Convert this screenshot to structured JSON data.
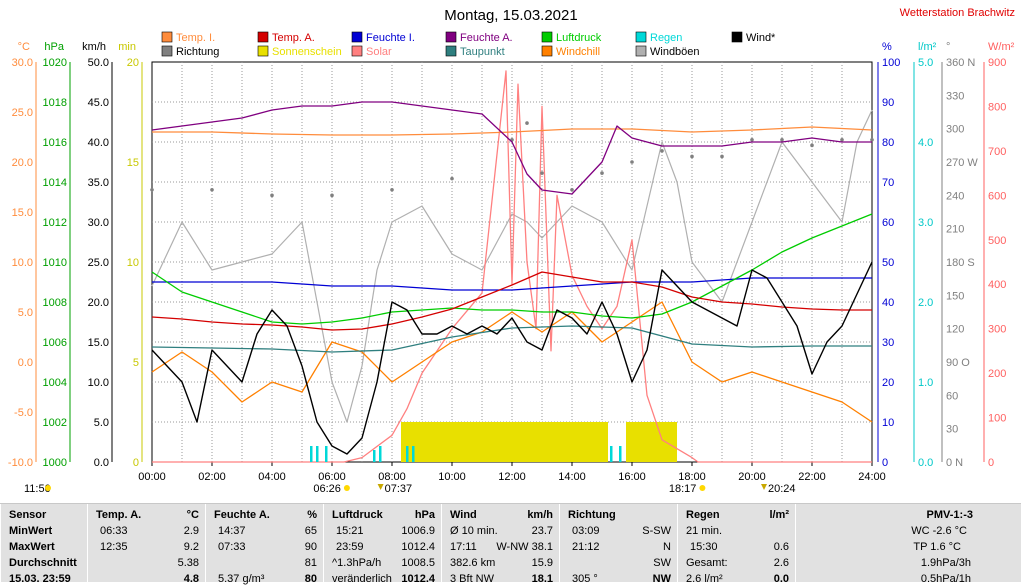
{
  "title": "Montag, 15.03.2021",
  "station": "Wetterstation Brachwitz",
  "legend": [
    {
      "label": "Temp. I.",
      "color": "#ff8c3c"
    },
    {
      "label": "Richtung",
      "color": "#808080"
    },
    {
      "label": "Temp. A.",
      "color": "#d40000"
    },
    {
      "label": "Sonnenschein",
      "color": "#e8e000"
    },
    {
      "label": "Feuchte I.",
      "color": "#0000d4"
    },
    {
      "label": "Solar",
      "color": "#ff8080"
    },
    {
      "label": "Feuchte A.",
      "color": "#800080"
    },
    {
      "label": "Taupunkt",
      "color": "#2f7f7f"
    },
    {
      "label": "Luftdruck",
      "color": "#00cc00"
    },
    {
      "label": "Windchill",
      "color": "#ff8000"
    },
    {
      "label": "Regen",
      "color": "#00d8d8"
    },
    {
      "label": "Windböen",
      "color": "#b0b0b0"
    },
    {
      "label": "Wind*",
      "color": "#000000"
    }
  ],
  "axes_left": [
    {
      "unit": "°C",
      "color": "#ff8c3c",
      "ticks": [
        "30.0",
        "25.0",
        "20.0",
        "15.0",
        "10.0",
        "5.0",
        "0.0",
        "-5.0",
        "-10.0"
      ]
    },
    {
      "unit": "hPa",
      "color": "#00a000",
      "ticks": [
        "1020",
        "1018",
        "1016",
        "1014",
        "1012",
        "1010",
        "1008",
        "1006",
        "1004",
        "1002",
        "1000"
      ]
    },
    {
      "unit": "km/h",
      "color": "#000000",
      "ticks": [
        "50.0",
        "45.0",
        "40.0",
        "35.0",
        "30.0",
        "25.0",
        "20.0",
        "15.0",
        "10.0",
        "5.0",
        "0.0"
      ]
    },
    {
      "unit": "min",
      "color": "#c8c800",
      "ticks": [
        "20",
        "15",
        "10",
        "5",
        "0"
      ]
    }
  ],
  "axes_right": [
    {
      "unit": "%",
      "color": "#0000d4",
      "ticks": [
        "100",
        "90",
        "80",
        "70",
        "60",
        "50",
        "40",
        "30",
        "20",
        "10",
        "0"
      ]
    },
    {
      "unit": "l/m²",
      "color": "#00c8c8",
      "ticks": [
        "5.0",
        "4.0",
        "3.0",
        "2.0",
        "1.0",
        "0.0"
      ]
    },
    {
      "unit": "°",
      "color": "#808080",
      "ticks": [
        "360 N",
        "330",
        "300",
        "270 W",
        "240",
        "210",
        "180 S",
        "150",
        "120",
        "90 O",
        "60",
        "30",
        "0 N"
      ]
    },
    {
      "unit": "W/m²",
      "color": "#ff6060",
      "ticks": [
        "900",
        "800",
        "700",
        "600",
        "500",
        "400",
        "300",
        "200",
        "100",
        "0"
      ]
    }
  ],
  "x_ticks": [
    "00:00",
    "02:00",
    "04:00",
    "06:00",
    "08:00",
    "10:00",
    "12:00",
    "14:00",
    "16:00",
    "18:00",
    "20:00",
    "22:00",
    "24:00"
  ],
  "sun_events": {
    "sunrise": "06:26",
    "sunset": "18:17",
    "daylength": "11:50",
    "moonrise": "07:37",
    "moonset": "20:24"
  },
  "chart_data": {
    "type": "line",
    "title": "Montag, 15.03.2021",
    "x_unit": "hour",
    "xlim": [
      0,
      24
    ],
    "series": [
      {
        "name": "Luftdruck",
        "unit": "hPa",
        "color": "#00cc00",
        "ylim": [
          1000,
          1020
        ],
        "x": [
          0,
          1,
          2,
          3,
          4,
          5,
          6,
          7,
          8,
          9,
          10,
          11,
          12,
          13,
          14,
          15,
          16,
          17,
          18,
          19,
          20,
          21,
          22,
          23,
          24
        ],
        "y": [
          1009.5,
          1008.5,
          1008.0,
          1007.5,
          1007.0,
          1006.9,
          1007.0,
          1007.2,
          1007.5,
          1007.6,
          1007.7,
          1007.6,
          1007.6,
          1007.5,
          1007.5,
          1007.3,
          1007.2,
          1007.4,
          1008.0,
          1008.8,
          1009.6,
          1010.5,
          1011.2,
          1011.8,
          1012.4
        ]
      },
      {
        "name": "Temp. A.",
        "unit": "°C",
        "color": "#d40000",
        "ylim": [
          -10,
          30
        ],
        "x": [
          0,
          1,
          2,
          3,
          4,
          5,
          6,
          7,
          8,
          9,
          10,
          11,
          12,
          13,
          14,
          15,
          16,
          17,
          18,
          19,
          20,
          21,
          22,
          23,
          24
        ],
        "y": [
          4.5,
          4.3,
          4.0,
          3.8,
          3.7,
          3.5,
          3.2,
          3.3,
          3.8,
          4.5,
          5.3,
          6.5,
          7.7,
          9.0,
          8.5,
          8.0,
          8.0,
          7.5,
          6.5,
          6.0,
          5.8,
          5.5,
          5.3,
          5.2,
          5.2
        ]
      },
      {
        "name": "Temp. I.",
        "unit": "°C",
        "color": "#ff8c3c",
        "ylim": [
          -10,
          30
        ],
        "x": [
          0,
          2,
          4,
          6,
          8,
          10,
          12,
          14,
          16,
          18,
          20,
          22,
          24
        ],
        "y": [
          23.0,
          23.0,
          22.8,
          22.7,
          22.7,
          22.8,
          23.0,
          23.3,
          23.3,
          23.0,
          23.2,
          23.5,
          23.2
        ]
      },
      {
        "name": "Taupunkt",
        "unit": "°C",
        "color": "#2f7f7f",
        "ylim": [
          -10,
          30
        ],
        "x": [
          0,
          2,
          4,
          6,
          8,
          10,
          12,
          14,
          16,
          18,
          20,
          22,
          24
        ],
        "y": [
          1.5,
          1.4,
          1.3,
          1.0,
          1.2,
          2.5,
          3.4,
          3.6,
          3.4,
          1.8,
          1.5,
          1.6,
          1.6
        ]
      },
      {
        "name": "Feuchte I.",
        "unit": "%",
        "color": "#0000d4",
        "ylim": [
          0,
          100
        ],
        "x": [
          0,
          4,
          6,
          8,
          10,
          12,
          14,
          16,
          18,
          20,
          22,
          24
        ],
        "y": [
          45,
          45,
          44,
          44,
          43,
          43,
          44,
          45,
          45,
          46,
          46,
          46
        ]
      },
      {
        "name": "Feuchte A.",
        "unit": "%",
        "color": "#800080",
        "ylim": [
          0,
          100
        ],
        "x": [
          0,
          1,
          2,
          3,
          4,
          5,
          6,
          7,
          8,
          9,
          10,
          11,
          12,
          12.5,
          13,
          14,
          15,
          15.5,
          16,
          17,
          18,
          19,
          20,
          21,
          22,
          23,
          24
        ],
        "y": [
          83,
          84,
          85,
          86,
          88,
          89,
          89,
          90,
          90,
          89,
          88,
          87,
          80,
          72,
          68,
          67,
          75,
          84,
          81,
          79,
          79,
          79,
          80,
          80,
          81,
          80,
          80
        ]
      },
      {
        "name": "Wind*",
        "unit": "km/h",
        "color": "#000000",
        "ylim": [
          0,
          50
        ],
        "x": [
          0,
          0.5,
          1,
          1.5,
          2,
          2.5,
          3,
          3.5,
          4,
          4.5,
          5,
          5.5,
          6,
          6.5,
          7,
          7.5,
          8,
          8.5,
          9,
          9.5,
          10,
          10.5,
          11,
          11.5,
          12,
          12.5,
          13,
          13.5,
          14,
          14.5,
          15,
          15.5,
          16,
          16.5,
          17,
          17.5,
          18,
          18.5,
          19,
          19.5,
          20,
          20.5,
          21,
          21.5,
          22,
          22.5,
          23,
          23.5,
          24
        ],
        "y": [
          14,
          12,
          10,
          5,
          14,
          12,
          10,
          16,
          19,
          17,
          12,
          5,
          2,
          1,
          3,
          10,
          20,
          19,
          16,
          16,
          17,
          16,
          17,
          16,
          18,
          15,
          14,
          19,
          18,
          16,
          20,
          16,
          10,
          14,
          24,
          22,
          20,
          19,
          18,
          17,
          24,
          23,
          20,
          17,
          11,
          15,
          17,
          21,
          25
        ]
      },
      {
        "name": "Windböen",
        "unit": "km/h",
        "color": "#b0b0b0",
        "ylim": [
          0,
          50
        ],
        "x": [
          0,
          1,
          2,
          3,
          4,
          5,
          6,
          6.5,
          7,
          7.5,
          8,
          9,
          10,
          11,
          12,
          12.5,
          13,
          14,
          15,
          16,
          17,
          17.5,
          18,
          19,
          20,
          21,
          22,
          23,
          23.5,
          24
        ],
        "y": [
          22,
          30,
          24,
          25,
          26,
          30,
          10,
          5,
          12,
          24,
          30,
          32,
          26,
          24,
          31,
          30,
          28,
          32,
          30,
          24,
          40,
          35,
          25,
          20,
          30,
          40,
          35,
          30,
          40,
          44
        ]
      },
      {
        "name": "Windchill",
        "unit": "°C",
        "color": "#ff8000",
        "ylim": [
          -10,
          30
        ],
        "x": [
          0,
          1,
          2,
          3,
          4,
          5,
          6,
          7,
          8,
          9,
          10,
          11,
          12,
          13,
          14,
          15,
          16,
          17,
          18,
          19,
          20,
          21,
          22,
          23,
          24
        ],
        "y": [
          -1,
          1,
          -1,
          -4,
          -2,
          -3,
          2,
          1,
          -2,
          0,
          2,
          3,
          5,
          3,
          5,
          2,
          4,
          6,
          0,
          -2,
          -1,
          -2,
          -3,
          -4,
          -6
        ]
      },
      {
        "name": "Solar",
        "unit": "W/m²",
        "color": "#ff8080",
        "ylim": [
          0,
          900
        ],
        "x": [
          0,
          6.4,
          7,
          8,
          8.5,
          9,
          10,
          11,
          11.8,
          12,
          12.2,
          12.5,
          12.8,
          13,
          13.3,
          13.5,
          14,
          14.5,
          15,
          15.5,
          16,
          16.5,
          17,
          18,
          18.2,
          24
        ],
        "y": [
          0,
          0,
          10,
          60,
          120,
          200,
          300,
          380,
          880,
          400,
          850,
          450,
          300,
          800,
          250,
          600,
          420,
          350,
          300,
          350,
          500,
          150,
          50,
          10,
          0,
          0
        ]
      },
      {
        "name": "Richtung",
        "unit": "°",
        "color": "#808080",
        "ylim": [
          0,
          360
        ],
        "x": [
          0,
          2,
          4,
          6,
          8,
          10,
          12,
          12.5,
          13,
          14,
          15,
          16,
          17,
          18,
          19,
          20,
          21,
          22,
          23,
          24
        ],
        "y": [
          245,
          245,
          240,
          240,
          245,
          255,
          290,
          305,
          260,
          245,
          260,
          270,
          280,
          275,
          275,
          290,
          290,
          285,
          290,
          290
        ]
      },
      {
        "name": "Sonnenschein",
        "unit": "min",
        "color": "#e8e000",
        "ylim": [
          0,
          20
        ],
        "x": [
          8.3,
          15.2,
          15.8,
          17.5
        ],
        "y": [
          2,
          2,
          2,
          2
        ]
      },
      {
        "name": "Regen",
        "unit": "l/m²",
        "color": "#00d8d8",
        "ylim": [
          0,
          5
        ],
        "x": [
          5.3,
          5.5,
          5.8,
          7.4,
          7.6,
          8.5,
          8.7,
          15.3,
          15.6
        ],
        "y": [
          0.2,
          0.2,
          0.2,
          0.15,
          0.2,
          0.2,
          0.2,
          0.2,
          0.2
        ]
      }
    ],
    "grid": true,
    "legend": "top"
  },
  "table": {
    "row_labels": [
      "Sensor",
      "MinWert",
      "MaxWert",
      "Durchschnitt",
      "15.03. 23:59"
    ],
    "temp": {
      "title": "Temp. A.",
      "unit": "°C",
      "rows": [
        [
          "06:33",
          "2.9"
        ],
        [
          "12:35",
          "9.2"
        ],
        [
          "",
          "5.38"
        ],
        [
          "",
          "4.8"
        ]
      ]
    },
    "feuchte": {
      "title": "Feuchte A.",
      "unit": "%",
      "rows": [
        [
          "14:37",
          "65"
        ],
        [
          "07:33",
          "90"
        ],
        [
          "",
          "81"
        ],
        [
          "5.37 g/m³",
          "80"
        ]
      ]
    },
    "luftdruck": {
      "title": "Luftdruck",
      "unit": "hPa",
      "rows": [
        [
          "15:21",
          "1006.9"
        ],
        [
          "23:59",
          "1012.4"
        ],
        [
          "^1.3hPa/h",
          "1008.5"
        ],
        [
          "veränderlich",
          "1012.4"
        ]
      ]
    },
    "wind": {
      "title": "Wind",
      "unit": "km/h",
      "rows": [
        [
          "Ø 10 min.",
          "23.7"
        ],
        [
          "17:11",
          "W-NW 38.1"
        ],
        [
          "382.6 km",
          "15.9"
        ],
        [
          "3 Bft NW",
          "18.1"
        ]
      ]
    },
    "richtung": {
      "title": "Richtung",
      "rows": [
        [
          "03:09",
          "S-SW"
        ],
        [
          "21:12",
          "N"
        ],
        [
          "",
          "SW"
        ],
        [
          "305 °",
          "NW"
        ]
      ]
    },
    "regen": {
      "title": "Regen",
      "unit": "l/m²",
      "rows": [
        [
          "21 min.",
          ""
        ],
        [
          "15:30",
          "0.6"
        ],
        [
          "Gesamt:",
          "2.6"
        ],
        [
          "2.6 l/m²",
          "0.0"
        ]
      ]
    },
    "pmv": {
      "title": "PMV-1:-3",
      "rows": [
        "WC -2.6 °C",
        "TP 1.6 °C",
        "1.9hPa/3h",
        "0.5hPa/1h"
      ]
    }
  }
}
